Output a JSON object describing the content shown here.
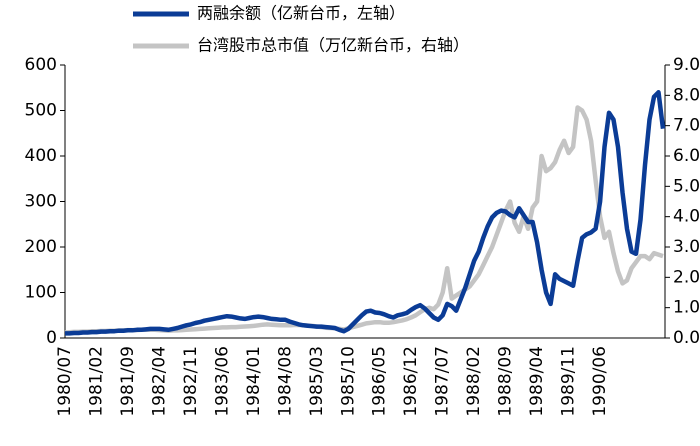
{
  "chart_data": {
    "type": "line",
    "categories": [
      "1980/07",
      null,
      null,
      null,
      null,
      null,
      null,
      "1981/02",
      null,
      null,
      null,
      null,
      null,
      null,
      "1981/09",
      null,
      null,
      null,
      null,
      null,
      null,
      "1982/04",
      null,
      null,
      null,
      null,
      null,
      null,
      "1982/11",
      null,
      null,
      null,
      null,
      null,
      null,
      "1983/06",
      null,
      null,
      null,
      null,
      null,
      null,
      "1984/01",
      null,
      null,
      null,
      null,
      null,
      null,
      "1984/08",
      null,
      null,
      null,
      null,
      null,
      null,
      "1985/03",
      null,
      null,
      null,
      null,
      null,
      null,
      "1985/10",
      null,
      null,
      null,
      null,
      null,
      null,
      "1986/05",
      null,
      null,
      null,
      null,
      null,
      null,
      "1986/12",
      null,
      null,
      null,
      null,
      null,
      null,
      "1987/07",
      null,
      null,
      null,
      null,
      null,
      null,
      "1988/02",
      null,
      null,
      null,
      null,
      null,
      null,
      "1988/09",
      null,
      null,
      null,
      null,
      null,
      null,
      "1989/04",
      null,
      null,
      null,
      null,
      null,
      null,
      "1989/11",
      null,
      null,
      null,
      null,
      null,
      null,
      "1990/06",
      null,
      null,
      null,
      null,
      null,
      null,
      null,
      null,
      null,
      null,
      null,
      null,
      null,
      null
    ],
    "series": [
      {
        "name": "台湾股市总市值（万亿新台币，右轴）",
        "color": "#c4c4c4",
        "axis": "y2",
        "values": [
          0.18,
          0.19,
          0.2,
          0.2,
          0.21,
          0.21,
          0.22,
          0.22,
          0.23,
          0.23,
          0.24,
          0.24,
          0.25,
          0.25,
          0.26,
          0.26,
          0.26,
          0.27,
          0.27,
          0.27,
          0.27,
          0.26,
          0.25,
          0.24,
          0.25,
          0.25,
          0.26,
          0.27,
          0.28,
          0.29,
          0.3,
          0.31,
          0.32,
          0.33,
          0.34,
          0.35,
          0.35,
          0.36,
          0.36,
          0.37,
          0.38,
          0.39,
          0.4,
          0.42,
          0.44,
          0.45,
          0.44,
          0.43,
          0.42,
          0.42,
          0.42,
          0.43,
          0.43,
          0.42,
          0.41,
          0.4,
          0.38,
          0.36,
          0.34,
          0.33,
          0.32,
          0.3,
          0.28,
          0.32,
          0.36,
          0.4,
          0.44,
          0.48,
          0.5,
          0.52,
          0.52,
          0.5,
          0.5,
          0.52,
          0.55,
          0.58,
          0.62,
          0.68,
          0.75,
          0.85,
          0.95,
          1.0,
          0.95,
          1.1,
          1.5,
          2.3,
          1.3,
          1.4,
          1.5,
          1.6,
          1.7,
          1.9,
          2.1,
          2.4,
          2.7,
          3.0,
          3.4,
          3.8,
          4.2,
          4.5,
          3.8,
          3.5,
          4.0,
          3.6,
          4.3,
          4.5,
          6.0,
          5.5,
          5.6,
          5.8,
          6.2,
          6.5,
          6.1,
          6.3,
          7.6,
          7.5,
          7.2,
          6.5,
          5.2,
          4.0,
          3.3,
          3.5,
          2.8,
          2.2,
          1.8,
          1.9,
          2.3,
          2.5,
          2.7,
          2.7,
          2.6,
          2.8,
          2.75,
          2.7
        ]
      },
      {
        "name": "两融余额（亿新台币，左轴）",
        "color": "#0b3c96",
        "values": [
          10,
          10,
          11,
          11,
          12,
          12,
          13,
          13,
          14,
          14,
          15,
          15,
          16,
          16,
          17,
          17,
          18,
          18,
          19,
          20,
          20,
          20,
          19,
          18,
          20,
          22,
          25,
          28,
          30,
          33,
          35,
          38,
          40,
          42,
          44,
          46,
          48,
          47,
          45,
          43,
          42,
          44,
          46,
          47,
          46,
          44,
          42,
          41,
          40,
          40,
          36,
          33,
          30,
          28,
          27,
          26,
          25,
          25,
          24,
          23,
          22,
          18,
          15,
          20,
          30,
          40,
          50,
          58,
          60,
          56,
          55,
          52,
          48,
          45,
          50,
          52,
          55,
          62,
          68,
          72,
          65,
          55,
          45,
          40,
          50,
          75,
          70,
          60,
          85,
          110,
          140,
          170,
          190,
          220,
          245,
          265,
          275,
          280,
          278,
          270,
          265,
          285,
          270,
          255,
          255,
          210,
          150,
          100,
          75,
          140,
          130,
          125,
          120,
          115,
          170,
          220,
          228,
          232,
          240,
          300,
          420,
          495,
          480,
          420,
          320,
          240,
          190,
          185,
          260,
          380,
          480,
          530,
          540,
          460
        ]
      }
    ],
    "ylim": [
      0,
      600
    ],
    "yticks": [
      0,
      100,
      200,
      300,
      400,
      500,
      600
    ],
    "y2lim": [
      0,
      9
    ],
    "y2ticks": [
      {
        "value": 0,
        "label": "0.0"
      },
      {
        "value": 1,
        "label": "1.0"
      },
      {
        "value": 2,
        "label": "2.0"
      },
      {
        "value": 3,
        "label": "3.0"
      },
      {
        "value": 4,
        "label": "4.0"
      },
      {
        "value": 5,
        "label": "5.0"
      },
      {
        "value": 6,
        "label": "6.0"
      },
      {
        "value": 7,
        "label": "7.0"
      },
      {
        "value": 8,
        "label": "8.0"
      },
      {
        "value": 9,
        "label": "9.0"
      }
    ],
    "legend": "top"
  }
}
